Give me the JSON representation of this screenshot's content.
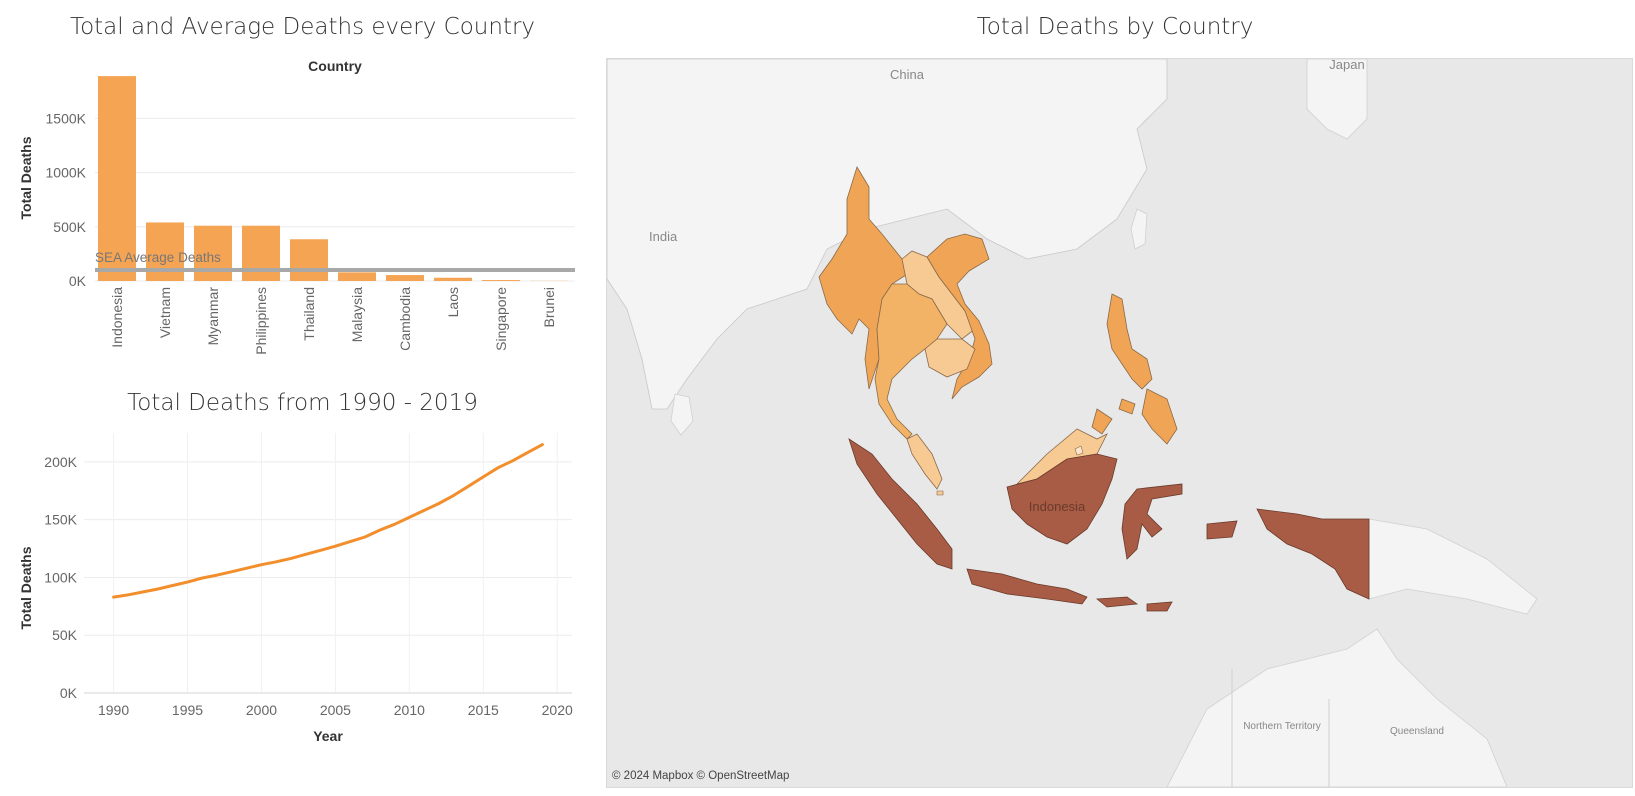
{
  "chart_data": [
    {
      "type": "bar",
      "title": "Total and Average Deaths every Country",
      "header": "Country",
      "ylabel": "Total Deaths",
      "categories": [
        "Indonesia",
        "Vietnam",
        "Myanmar",
        "Philippines",
        "Thailand",
        "Malaysia",
        "Cambodia",
        "Laos",
        "Singapore",
        "Brunei"
      ],
      "values": [
        1890000,
        540000,
        510000,
        510000,
        385000,
        80000,
        55000,
        30000,
        9000,
        1500
      ],
      "ylim": [
        0,
        1900000
      ],
      "yticks": [
        0,
        500000,
        1000000,
        1500000
      ],
      "ytick_labels": [
        "0K",
        "500K",
        "1000K",
        "1500K"
      ],
      "reference_line": {
        "label": "SEA Average Deaths",
        "value": 101000
      },
      "bar_color": "#f5a454",
      "grid": true
    },
    {
      "type": "line",
      "title": "Total Deaths from 1990 - 2019",
      "xlabel": "Year",
      "ylabel": "Total Deaths",
      "x": [
        1990,
        1991,
        1992,
        1993,
        1994,
        1995,
        1996,
        1997,
        1998,
        1999,
        2000,
        2001,
        2002,
        2003,
        2004,
        2005,
        2006,
        2007,
        2008,
        2009,
        2010,
        2011,
        2012,
        2013,
        2014,
        2015,
        2016,
        2017,
        2018,
        2019
      ],
      "series": [
        {
          "values": [
            83000,
            85000,
            87500,
            90000,
            93000,
            96000,
            99500,
            102000,
            105000,
            108000,
            111000,
            113500,
            116500,
            120000,
            123500,
            127000,
            131000,
            135000,
            141000,
            146000,
            152000,
            158000,
            164000,
            171000,
            179000,
            187000,
            195000,
            201000,
            208000,
            215000
          ]
        }
      ],
      "xlim": [
        1988,
        2021
      ],
      "xticks": [
        1990,
        1995,
        2000,
        2005,
        2010,
        2015,
        2020
      ],
      "ylim": [
        0,
        225000
      ],
      "yticks": [
        0,
        50000,
        100000,
        150000,
        200000
      ],
      "ytick_labels": [
        "0K",
        "50K",
        "100K",
        "150K",
        "200K"
      ],
      "line_color": "#f28e2b",
      "grid": true
    },
    {
      "type": "map",
      "title": "Total Deaths by Country",
      "country_label": "Indonesia",
      "basemap_labels": [
        "China",
        "Japan",
        "India",
        "Northern Territory",
        "Queensland"
      ],
      "credit": "© 2024 Mapbox © OpenStreetMap"
    }
  ]
}
